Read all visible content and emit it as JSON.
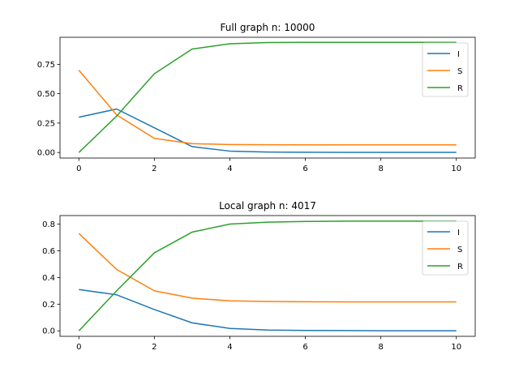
{
  "chart_data": [
    {
      "type": "line",
      "title": "Full graph n: 10000",
      "xlabel": "",
      "ylabel": "",
      "xlim": [
        0,
        10
      ],
      "ylim": [
        -0.047,
        0.98
      ],
      "xticks": [
        0,
        2,
        4,
        6,
        8,
        10
      ],
      "xtick_labels": [
        "0",
        "2",
        "4",
        "6",
        "8",
        "10"
      ],
      "yticks": [
        0.0,
        0.25,
        0.5,
        0.75
      ],
      "ytick_labels": [
        "0.00",
        "0.25",
        "0.50",
        "0.75"
      ],
      "grid": false,
      "legend_position": "top-right",
      "x": [
        0,
        1,
        2,
        3,
        4,
        5,
        6,
        7,
        8,
        9,
        10
      ],
      "series": [
        {
          "name": "I",
          "color": "#1f77b4",
          "values": [
            0.3,
            0.37,
            0.21,
            0.05,
            0.012,
            0.004,
            0.002,
            0.001,
            0.001,
            0.001,
            0.001
          ]
        },
        {
          "name": "S",
          "color": "#ff7f0e",
          "values": [
            0.7,
            0.32,
            0.12,
            0.075,
            0.068,
            0.066,
            0.065,
            0.065,
            0.065,
            0.065,
            0.065
          ]
        },
        {
          "name": "R",
          "color": "#2ca02c",
          "values": [
            0.0,
            0.31,
            0.67,
            0.88,
            0.925,
            0.935,
            0.937,
            0.937,
            0.937,
            0.937,
            0.937
          ]
        }
      ]
    },
    {
      "type": "line",
      "title": "Local graph n: 4017",
      "xlabel": "",
      "ylabel": "",
      "xlim": [
        0,
        10
      ],
      "ylim": [
        -0.041,
        0.864
      ],
      "xticks": [
        0,
        2,
        4,
        6,
        8,
        10
      ],
      "xtick_labels": [
        "0",
        "2",
        "4",
        "6",
        "8",
        "10"
      ],
      "yticks": [
        0.0,
        0.2,
        0.4,
        0.6,
        0.8
      ],
      "ytick_labels": [
        "0.0",
        "0.2",
        "0.4",
        "0.6",
        "0.8"
      ],
      "grid": false,
      "legend_position": "top-right",
      "x": [
        0,
        1,
        2,
        3,
        4,
        5,
        6,
        7,
        8,
        9,
        10
      ],
      "series": [
        {
          "name": "I",
          "color": "#1f77b4",
          "values": [
            0.31,
            0.27,
            0.16,
            0.06,
            0.018,
            0.006,
            0.003,
            0.002,
            0.001,
            0.001,
            0.001
          ]
        },
        {
          "name": "S",
          "color": "#ff7f0e",
          "values": [
            0.73,
            0.46,
            0.3,
            0.245,
            0.225,
            0.22,
            0.218,
            0.217,
            0.217,
            0.217,
            0.217
          ]
        },
        {
          "name": "R",
          "color": "#2ca02c",
          "values": [
            0.0,
            0.3,
            0.585,
            0.74,
            0.8,
            0.815,
            0.82,
            0.822,
            0.822,
            0.822,
            0.822
          ]
        }
      ]
    }
  ]
}
